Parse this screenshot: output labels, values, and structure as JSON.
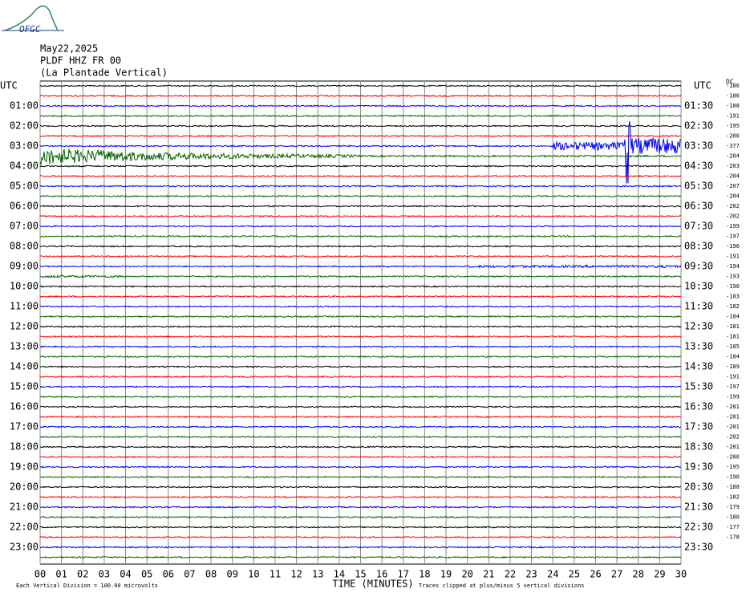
{
  "header": {
    "logo": "OFGC",
    "date": "May22,2025",
    "station": "PLDF HHZ FR 00",
    "location": "(La Plantade Vertical)"
  },
  "chart_data": {
    "type": "helicorder",
    "left_axis_title": "UTC",
    "right_axis_title": "UTC",
    "dc_title": "DC",
    "left_labels": [
      "01:00",
      "02:00",
      "03:00",
      "04:00",
      "05:00",
      "06:00",
      "07:00",
      "08:00",
      "09:00",
      "10:00",
      "11:00",
      "12:00",
      "13:00",
      "14:00",
      "15:00",
      "16:00",
      "17:00",
      "18:00",
      "19:00",
      "20:00",
      "21:00",
      "22:00",
      "23:00"
    ],
    "right_labels": [
      "01:30",
      "02:30",
      "03:30",
      "04:30",
      "05:30",
      "06:30",
      "07:30",
      "08:30",
      "09:30",
      "10:30",
      "11:30",
      "12:30",
      "13:30",
      "14:30",
      "15:30",
      "16:30",
      "17:30",
      "18:30",
      "19:30",
      "20:30",
      "21:30",
      "22:30",
      "23:30"
    ],
    "dc_values": [
      -186,
      -186,
      -188,
      -191,
      -195,
      -200,
      -377,
      -204,
      -203,
      -204,
      -207,
      -204,
      -202,
      -202,
      -199,
      -197,
      -196,
      -191,
      -194,
      -193,
      -190,
      -183,
      -182,
      -184,
      -181,
      -181,
      -185,
      -184,
      -189,
      -191,
      -197,
      -199,
      -201,
      -201,
      -201,
      -202,
      -201,
      -200,
      -195,
      -190,
      -188,
      -182,
      -179,
      -180,
      -177,
      -178
    ],
    "trace_colors": [
      "#000000",
      "#ff0000",
      "#0000ff",
      "#006400"
    ],
    "xlabel": "TIME (MINUTES)",
    "xlim": [
      0,
      30
    ],
    "xticks": [
      {
        "value": 0,
        "label": "00"
      },
      {
        "value": 1,
        "label": "01"
      },
      {
        "value": 2,
        "label": "02"
      },
      {
        "value": 3,
        "label": "03"
      },
      {
        "value": 4,
        "label": "04"
      },
      {
        "value": 5,
        "label": "05"
      },
      {
        "value": 6,
        "label": "06"
      },
      {
        "value": 7,
        "label": "07"
      },
      {
        "value": 8,
        "label": "08"
      },
      {
        "value": 9,
        "label": "09"
      },
      10,
      11,
      12,
      13,
      14,
      15,
      16,
      17,
      18,
      19,
      20,
      21,
      22,
      23,
      24,
      25,
      26,
      27,
      28,
      29,
      30
    ],
    "footer_left": "Each Vertical Division =  100.00 microvolts",
    "footer_right": "Traces clipped at plus/minus 5 vertical divisions"
  }
}
